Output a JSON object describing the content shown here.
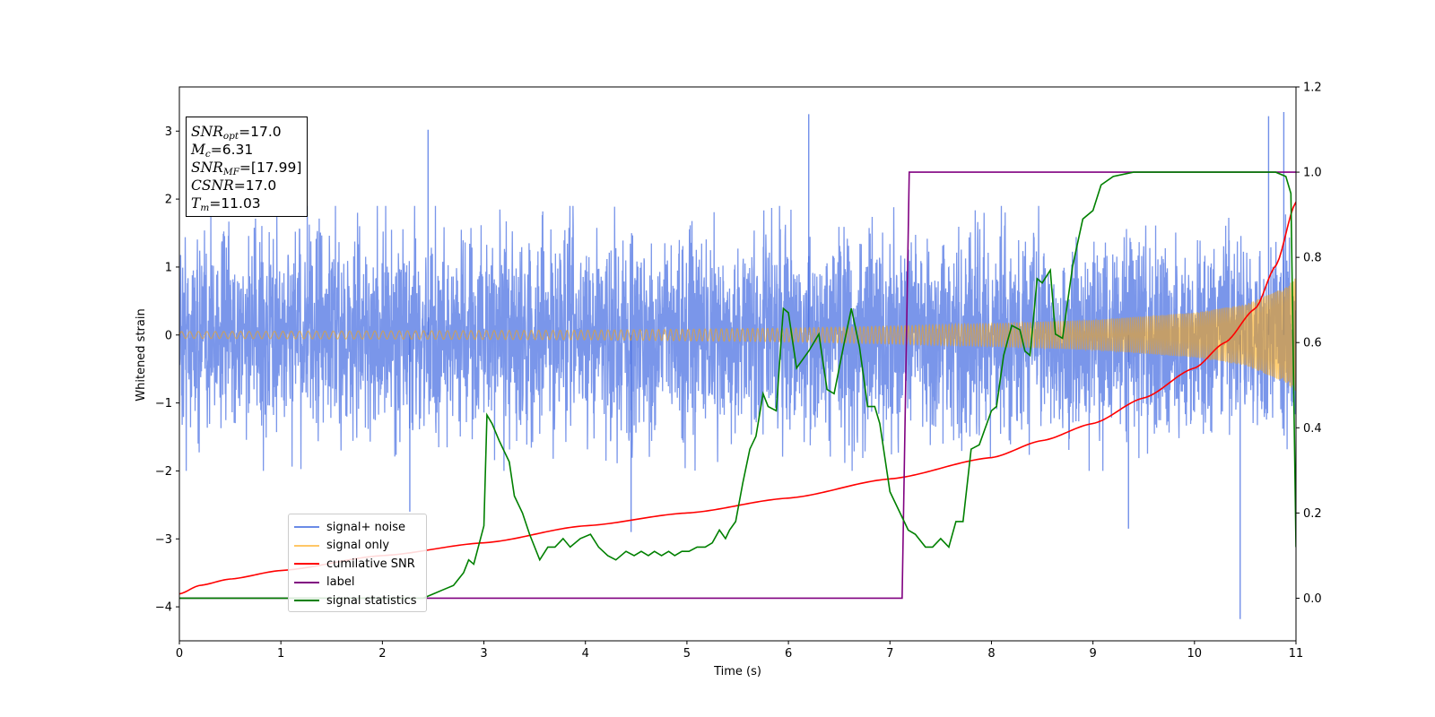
{
  "chart_data": {
    "type": "line",
    "xlabel": "Time (s)",
    "ylabel": "Whitened strain",
    "xlim": [
      0,
      11
    ],
    "ylim": [
      -4.5,
      3.65
    ],
    "y2lim": [
      -0.1,
      1.2
    ],
    "x_ticks": [
      "0",
      "1",
      "2",
      "3",
      "4",
      "5",
      "6",
      "7",
      "8",
      "9",
      "10",
      "11"
    ],
    "y_ticks": [
      "−4",
      "−3",
      "−2",
      "−1",
      "0",
      "1",
      "2",
      "3"
    ],
    "y_tick_values": [
      -4,
      -3,
      -2,
      -1,
      0,
      1,
      2,
      3
    ],
    "y2_ticks": [
      "0.0",
      "0.2",
      "0.4",
      "0.6",
      "0.8",
      "1.0",
      "1.2"
    ],
    "y2_tick_values": [
      0,
      0.2,
      0.4,
      0.6,
      0.8,
      1.0,
      1.2
    ],
    "grid": false,
    "legend_position": "lower-left",
    "infobox": {
      "snr_opt": {
        "name": "SNR",
        "sub": "opt",
        "value": "=17.0"
      },
      "mc": {
        "name": "M",
        "sub": "c",
        "value": "=6.31"
      },
      "snr_mf": {
        "name": "SNR",
        "sub": "MF",
        "value": "=[17.99]"
      },
      "csnr": {
        "name": "CSNR",
        "value": "=17.0"
      },
      "tm": {
        "name": "T",
        "sub": "m",
        "value": "=11.03"
      }
    },
    "series": [
      {
        "name": "signal+ noise",
        "color": "#4169e1",
        "axis": "left",
        "noise_std": 0.72,
        "noise_envelope": [
          -2.0,
          1.9
        ],
        "spikes": [
          [
            2.45,
            3.02
          ],
          [
            6.2,
            3.25
          ],
          [
            10.73,
            3.22
          ],
          [
            10.88,
            3.28
          ],
          [
            10.45,
            -4.18
          ],
          [
            2.27,
            -2.6
          ],
          [
            4.45,
            -2.9
          ],
          [
            9.35,
            -2.85
          ]
        ]
      },
      {
        "name": "signal only",
        "color": "#ffa500",
        "axis": "left",
        "amplitude_t": [
          0,
          2,
          4,
          6,
          7,
          8,
          9,
          10,
          10.5,
          10.9,
          11
        ],
        "amplitude": [
          0.05,
          0.06,
          0.07,
          0.1,
          0.13,
          0.17,
          0.22,
          0.33,
          0.45,
          0.7,
          0.85
        ]
      },
      {
        "name": "cumilative SNR",
        "color": "#ff0000",
        "axis": "right",
        "x": [
          0,
          0.2,
          0.5,
          1,
          2,
          3,
          4,
          5,
          6,
          7,
          8,
          8.5,
          9,
          9.5,
          10,
          10.3,
          10.6,
          10.8,
          11
        ],
        "y": [
          0.01,
          0.03,
          0.045,
          0.065,
          0.1,
          0.13,
          0.17,
          0.2,
          0.235,
          0.28,
          0.33,
          0.37,
          0.41,
          0.47,
          0.54,
          0.6,
          0.68,
          0.78,
          0.93
        ]
      },
      {
        "name": "label",
        "color": "#800080",
        "axis": "right",
        "x": [
          0,
          7.12,
          7.19,
          11
        ],
        "y": [
          0,
          0,
          1,
          1
        ]
      },
      {
        "name": "signal statistics",
        "color": "#008000",
        "axis": "right",
        "x": [
          0,
          2.4,
          2.5,
          2.6,
          2.7,
          2.8,
          2.85,
          2.9,
          3.0,
          3.03,
          3.08,
          3.15,
          3.25,
          3.3,
          3.38,
          3.45,
          3.55,
          3.63,
          3.7,
          3.78,
          3.85,
          3.95,
          4.05,
          4.13,
          4.22,
          4.3,
          4.4,
          4.48,
          4.55,
          4.62,
          4.68,
          4.75,
          4.82,
          4.88,
          4.95,
          5.02,
          5.1,
          5.18,
          5.25,
          5.32,
          5.38,
          5.42,
          5.48,
          5.55,
          5.62,
          5.68,
          5.75,
          5.8,
          5.88,
          5.95,
          6.0,
          6.08,
          6.2,
          6.3,
          6.38,
          6.45,
          6.55,
          6.62,
          6.7,
          6.78,
          6.85,
          6.9,
          7.0,
          7.08,
          7.18,
          7.25,
          7.35,
          7.42,
          7.5,
          7.58,
          7.65,
          7.72,
          7.8,
          7.88,
          8.0,
          8.05,
          8.12,
          8.2,
          8.28,
          8.33,
          8.38,
          8.45,
          8.5,
          8.58,
          8.63,
          8.7,
          8.8,
          8.9,
          9.0,
          9.08,
          9.2,
          9.4,
          9.6,
          10.0,
          10.5,
          10.8,
          10.9,
          10.95,
          11.0
        ],
        "y": [
          0,
          0,
          0.01,
          0.02,
          0.03,
          0.06,
          0.09,
          0.08,
          0.17,
          0.43,
          0.41,
          0.37,
          0.32,
          0.24,
          0.2,
          0.15,
          0.09,
          0.12,
          0.12,
          0.14,
          0.12,
          0.14,
          0.15,
          0.12,
          0.1,
          0.09,
          0.11,
          0.1,
          0.11,
          0.1,
          0.11,
          0.1,
          0.11,
          0.1,
          0.11,
          0.11,
          0.12,
          0.12,
          0.13,
          0.16,
          0.14,
          0.16,
          0.18,
          0.27,
          0.35,
          0.38,
          0.48,
          0.45,
          0.44,
          0.68,
          0.67,
          0.54,
          0.58,
          0.62,
          0.49,
          0.48,
          0.6,
          0.68,
          0.59,
          0.45,
          0.45,
          0.41,
          0.25,
          0.21,
          0.16,
          0.15,
          0.12,
          0.12,
          0.14,
          0.12,
          0.18,
          0.18,
          0.35,
          0.36,
          0.44,
          0.45,
          0.57,
          0.64,
          0.63,
          0.58,
          0.57,
          0.75,
          0.74,
          0.77,
          0.62,
          0.61,
          0.78,
          0.89,
          0.91,
          0.97,
          0.99,
          1.0,
          1.0,
          1.0,
          1.0,
          1.0,
          0.99,
          0.95,
          0.12
        ]
      }
    ]
  }
}
